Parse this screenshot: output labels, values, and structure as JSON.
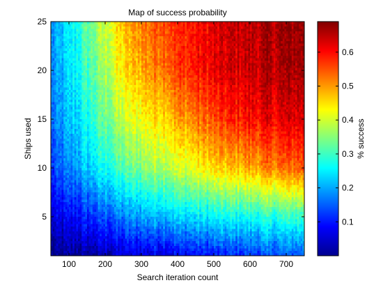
{
  "chart_data": {
    "type": "heatmap",
    "title": "Map of success probability",
    "xlabel": "Search iteration count",
    "ylabel": "Ships used",
    "xlim": [
      50,
      750
    ],
    "ylim": [
      1,
      25
    ],
    "x_ticks": [
      100,
      200,
      300,
      400,
      500,
      600,
      700
    ],
    "y_ticks": [
      5,
      10,
      15,
      20,
      25
    ],
    "colorbar": {
      "label": "% success",
      "range": [
        0.0,
        0.69
      ],
      "ticks": [
        0.1,
        0.2,
        0.3,
        0.4,
        0.5,
        0.6
      ],
      "colormap": "jet"
    },
    "x": [
      50,
      100,
      150,
      200,
      250,
      300,
      350,
      400,
      450,
      500,
      550,
      600,
      650,
      700,
      750
    ],
    "y": [
      1,
      5,
      10,
      15,
      20,
      25
    ],
    "z": [
      [
        0.0,
        0.01,
        0.02,
        0.03,
        0.05,
        0.06,
        0.07,
        0.08,
        0.09,
        0.1,
        0.11,
        0.12,
        0.13,
        0.14,
        0.15
      ],
      [
        0.05,
        0.08,
        0.11,
        0.14,
        0.17,
        0.2,
        0.22,
        0.23,
        0.24,
        0.25,
        0.26,
        0.27,
        0.28,
        0.29,
        0.3
      ],
      [
        0.12,
        0.17,
        0.22,
        0.27,
        0.31,
        0.35,
        0.38,
        0.4,
        0.42,
        0.45,
        0.47,
        0.49,
        0.51,
        0.53,
        0.55
      ],
      [
        0.15,
        0.21,
        0.27,
        0.33,
        0.39,
        0.43,
        0.46,
        0.49,
        0.52,
        0.55,
        0.58,
        0.6,
        0.61,
        0.62,
        0.63
      ],
      [
        0.17,
        0.23,
        0.3,
        0.37,
        0.44,
        0.49,
        0.53,
        0.56,
        0.59,
        0.61,
        0.63,
        0.64,
        0.65,
        0.66,
        0.67
      ],
      [
        0.18,
        0.24,
        0.32,
        0.4,
        0.47,
        0.52,
        0.56,
        0.58,
        0.6,
        0.62,
        0.64,
        0.65,
        0.66,
        0.67,
        0.68
      ]
    ]
  }
}
